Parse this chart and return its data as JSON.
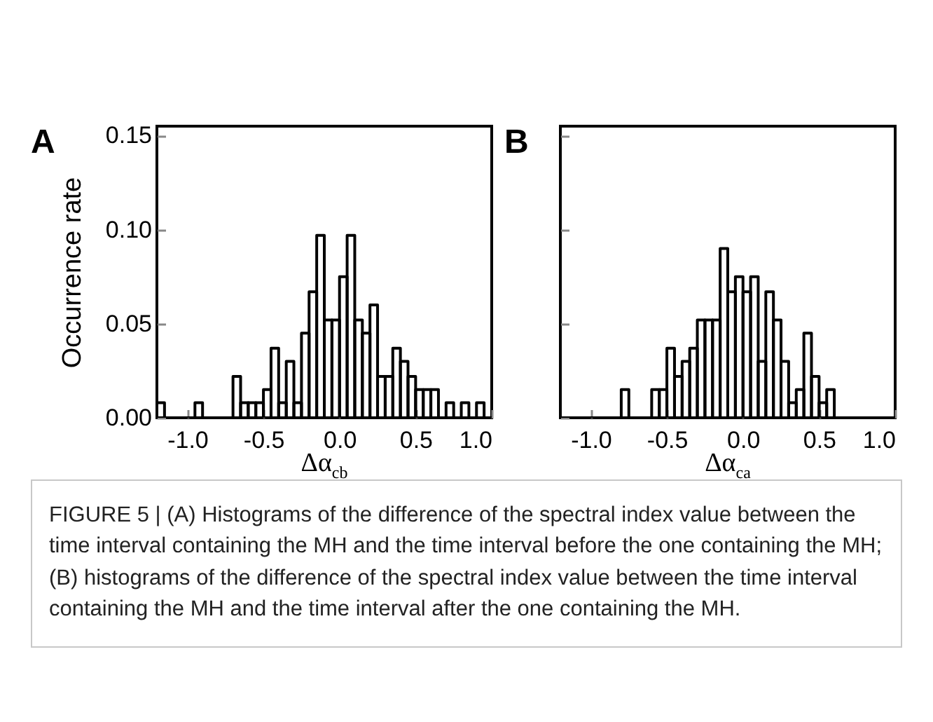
{
  "chart_data": [
    {
      "type": "histogram",
      "color": "#000000",
      "ylabel": "Occurrence rate",
      "xlabel": "Δα$_{cb}$",
      "annotations": [
        "A",
        "FIGURE 5 | (A) Histograms of the difference of the spectral index value between the time interval containing the MH and the time interval before the one containing the MH; (B) histograms of the difference of the spectral index value between the time interval containing the MH and the time interval after the one containing the MH."
      ],
      "bins": [
        -1.2,
        -1.15,
        -1.1,
        -1.05,
        -1.0,
        -0.95,
        -0.9,
        -0.85,
        -0.8,
        -0.75,
        -0.7,
        -0.65,
        -0.6,
        -0.55,
        -0.5,
        -0.45,
        -0.4,
        -0.35,
        -0.3,
        -0.25,
        -0.2,
        -0.15,
        -0.1,
        -0.05,
        0.0,
        0.05,
        0.1,
        0.15,
        0.2,
        0.25,
        0.3,
        0.35,
        0.4,
        0.45,
        0.5,
        0.55,
        0.6,
        0.65,
        0.7,
        0.75,
        0.8,
        0.85,
        0.9,
        0.95,
        1.0
      ],
      "values": [
        0.008,
        0,
        0,
        0,
        0,
        0.008,
        0,
        0,
        0,
        0,
        0.022,
        0.008,
        0.008,
        0.008,
        0.015,
        0.037,
        0.008,
        0.03,
        0.008,
        0.045,
        0.067,
        0.097,
        0.052,
        0.052,
        0.075,
        0.097,
        0.052,
        0.045,
        0.06,
        0.022,
        0.022,
        0.037,
        0.03,
        0.022,
        0.015,
        0.015,
        0.015,
        0,
        0.008,
        0,
        0.008,
        0,
        0.008,
        0
      ],
      "xlim": [
        -1.2,
        1.0
      ],
      "ylim": [
        0,
        0.155
      ],
      "xticks": [
        {
          "value": -1,
          "label": "-1.0"
        },
        {
          "value": -0.5,
          "label": "-0.5"
        },
        {
          "value": 0,
          "label": "0.0"
        },
        {
          "value": 0.5,
          "label": "0.5"
        },
        {
          "value": 1,
          "label": "1.0"
        }
      ],
      "yticks": [
        {
          "value": 0,
          "label": "0.00"
        },
        {
          "value": 0.05,
          "label": "0.05"
        },
        {
          "value": 0.1,
          "label": "0.10"
        },
        {
          "value": 0.15,
          "label": "0.15"
        }
      ]
    },
    {
      "type": "histogram",
      "color": "#000000",
      "xlabel": "Δα$_{ca}$",
      "annotations": [
        "B"
      ],
      "tick_labels": "x",
      "bins": [
        -1.2,
        -1.15,
        -1.1,
        -1.05,
        -1.0,
        -0.95,
        -0.9,
        -0.85,
        -0.8,
        -0.75,
        -0.7,
        -0.65,
        -0.6,
        -0.55,
        -0.5,
        -0.45,
        -0.4,
        -0.35,
        -0.3,
        -0.25,
        -0.2,
        -0.15,
        -0.1,
        -0.05,
        0.0,
        0.05,
        0.1,
        0.15,
        0.2,
        0.25,
        0.3,
        0.35,
        0.4,
        0.45,
        0.5,
        0.55,
        0.6,
        0.65,
        0.7,
        0.75,
        0.8,
        0.85,
        0.9,
        0.95,
        1.0
      ],
      "values": [
        0,
        0,
        0,
        0,
        0,
        0,
        0,
        0,
        0.015,
        0,
        0,
        0,
        0.015,
        0.015,
        0.037,
        0.022,
        0.03,
        0.037,
        0.052,
        0.052,
        0.052,
        0.09,
        0.067,
        0.075,
        0.067,
        0.075,
        0.03,
        0.067,
        0.052,
        0.03,
        0.008,
        0.015,
        0.045,
        0.022,
        0.008,
        0.015,
        0,
        0,
        0,
        0,
        0,
        0,
        0,
        0
      ],
      "xlim": [
        -1.2,
        1.0
      ],
      "ylim": [
        0,
        0.155
      ],
      "xticks": [
        {
          "value": -1,
          "label": "-1.0"
        },
        {
          "value": -0.5,
          "label": "-0.5"
        },
        {
          "value": 0,
          "label": "0.0"
        },
        {
          "value": 0.5,
          "label": "0.5"
        },
        {
          "value": 1,
          "label": "1.0"
        }
      ],
      "yticks": [
        0,
        0.05,
        0.1,
        0.15
      ]
    }
  ]
}
